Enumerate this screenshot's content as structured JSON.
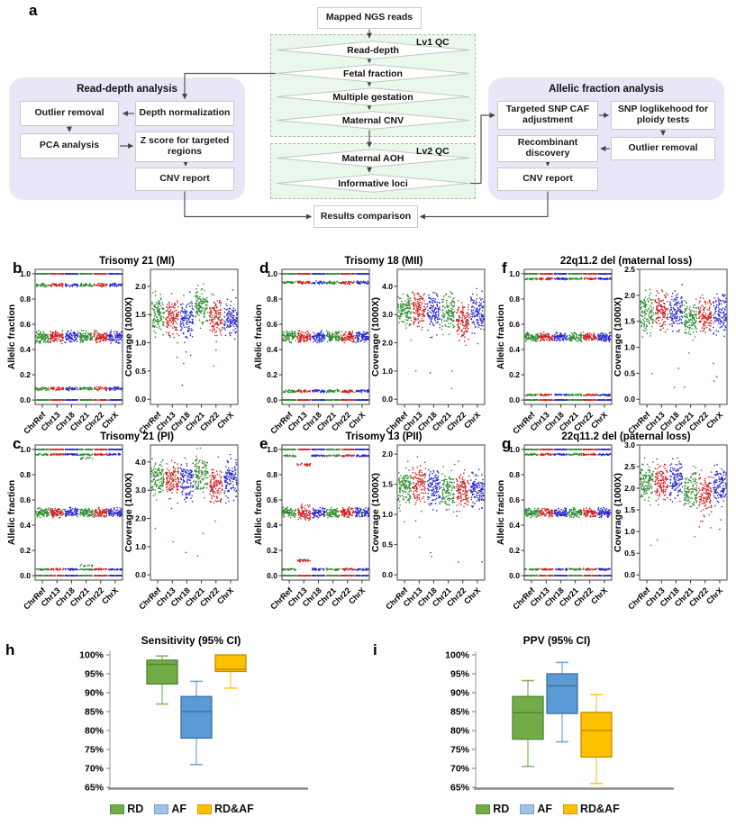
{
  "flowchart": {
    "label": "a",
    "top_box": "Mapped NGS reads",
    "bottom_box": "Results comparison",
    "qc1": {
      "title": "Lv1 QC",
      "steps": [
        "Read-depth",
        "Fetal fraction",
        "Multiple gestation",
        "Maternal CNV"
      ]
    },
    "qc2": {
      "title": "Lv2 QC",
      "steps": [
        "Maternal AOH",
        "Informative loci"
      ]
    },
    "left_panel": {
      "title": "Read-depth analysis",
      "outlier": "Outlier removal",
      "depth": "Depth normalization",
      "pca": "PCA analysis",
      "zscore": "Z score for targeted regions",
      "cnv": "CNV report"
    },
    "right_panel": {
      "title": "Allelic fraction analysis",
      "caf": "Targeted SNP CAF adjustment",
      "loglike": "SNP loglikehood for ploidy tests",
      "recomb": "Recombinant discovery",
      "outlier": "Outlier removal",
      "cnv": "CNV report"
    }
  },
  "colors": {
    "scatter": [
      "#2e8b2e",
      "#cc2222",
      "#2929cc"
    ],
    "panel_bg": "#e7e7f8",
    "qc_bg": "#eaf7ec",
    "box": {
      "green": {
        "fill": "#70AD47",
        "stroke": "#548235"
      },
      "blue": {
        "fill": "#5B9BD5",
        "stroke": "#41719C"
      },
      "yellow": {
        "fill": "#FFC000",
        "stroke": "#BF9000"
      }
    },
    "legend_swatches": [
      "#70AD47",
      "#9DC3E6",
      "#FFC000"
    ]
  },
  "chart_data": {
    "x_categories": [
      "ChrRef",
      "Chr13",
      "Chr18",
      "Chr21",
      "Chr22",
      "ChrX"
    ],
    "af_ylabel": "Allelic fraction",
    "cov_ylabel": "Coverage (1000X)",
    "af_yticks": [
      0.0,
      0.2,
      0.4,
      0.6,
      0.8,
      1.0
    ],
    "scatter_panels": [
      {
        "letter": "b",
        "title": "Trisomy 21 (MI)",
        "seed": 11,
        "af": {
          "bands": [
            [
              1.0,
              0.003,
              55
            ],
            [
              0.91,
              0.016,
              34
            ],
            [
              0.5,
              0.055,
              88
            ],
            [
              0.09,
              0.016,
              34
            ],
            [
              0.0,
              0.003,
              55
            ]
          ]
        },
        "cov": {
          "ymax_axis": 2.3,
          "yticks": [
            0,
            0.5,
            1.0,
            1.5,
            2.0
          ],
          "center": 1.45,
          "spread": 0.16,
          "offsets": [
            0.05,
            0,
            0,
            0.2,
            0,
            -0.05
          ],
          "outliers": 7
        }
      },
      {
        "letter": "c",
        "title": "Trisomy 21 (PI)",
        "seed": 22,
        "af": {
          "bands": [
            [
              1.0,
              0.003,
              55
            ],
            [
              0.96,
              0.008,
              30
            ],
            [
              0.5,
              0.042,
              80
            ],
            [
              0.05,
              0.008,
              30
            ],
            [
              0.0,
              0.003,
              55
            ]
          ],
          "extra": {
            "3": [
              [
                0.93,
                0.01,
                14
              ],
              [
                0.08,
                0.01,
                14
              ]
            ]
          }
        },
        "cov": {
          "ymax_axis": 4.6,
          "yticks": [
            0,
            1.0,
            2.0,
            3.0,
            4.0
          ],
          "center": 3.35,
          "spread": 0.3,
          "offsets": [
            0.05,
            0.05,
            0,
            0.2,
            -0.15,
            0
          ],
          "outliers": 6
        }
      },
      {
        "letter": "d",
        "title": "Trisomy 18 (MII)",
        "seed": 33,
        "af": {
          "bands": [
            [
              1.0,
              0.003,
              55
            ],
            [
              0.93,
              0.014,
              34
            ],
            [
              0.5,
              0.052,
              88
            ],
            [
              0.07,
              0.014,
              34
            ],
            [
              0.0,
              0.003,
              55
            ]
          ]
        },
        "cov": {
          "ymax_axis": 4.6,
          "yticks": [
            0,
            1.0,
            2.0,
            3.0,
            4.0
          ],
          "center": 3.1,
          "spread": 0.3,
          "offsets": [
            0.05,
            0.05,
            0,
            0,
            -0.35,
            0
          ],
          "outliers": 5
        }
      },
      {
        "letter": "e",
        "title": "Trisomy 13 (PII)",
        "seed": 44,
        "af": {
          "bands": [
            [
              1.0,
              0.003,
              55
            ],
            [
              0.95,
              0.01,
              30
            ],
            [
              0.5,
              0.045,
              80
            ],
            [
              0.05,
              0.01,
              30
            ],
            [
              0.0,
              0.003,
              55
            ]
          ],
          "overrides": {
            "1": [
              [
                1.0,
                0.003,
                55
              ],
              [
                0.88,
                0.014,
                28
              ],
              [
                0.5,
                0.07,
                85
              ],
              [
                0.12,
                0.014,
                28
              ],
              [
                0.0,
                0.003,
                55
              ]
            ]
          }
        },
        "cov": {
          "ymax_axis": 2.15,
          "yticks": [
            0,
            0.5,
            1.0,
            1.5,
            2.0
          ],
          "center": 1.45,
          "spread": 0.14,
          "offsets": [
            0,
            0.05,
            0,
            -0.05,
            -0.05,
            -0.05
          ],
          "outliers": 7
        }
      },
      {
        "letter": "f",
        "title": "22q11.2 del (maternal loss)",
        "seed": 55,
        "af": {
          "bands": [
            [
              1.0,
              0.003,
              55
            ],
            [
              0.96,
              0.009,
              32
            ],
            [
              0.5,
              0.04,
              80
            ],
            [
              0.04,
              0.009,
              32
            ],
            [
              0.0,
              0.003,
              55
            ]
          ]
        },
        "cov": {
          "ymax_axis": 2.5,
          "yticks": [
            0,
            0.5,
            1.0,
            1.5,
            2.0,
            2.5
          ],
          "center": 1.65,
          "spread": 0.16,
          "offsets": [
            0,
            0.05,
            0.05,
            -0.1,
            -0.05,
            0
          ],
          "outliers": 8
        }
      },
      {
        "letter": "g",
        "title": "22q11.2 del (paternal loss)",
        "seed": 66,
        "af": {
          "bands": [
            [
              1.0,
              0.003,
              55
            ],
            [
              0.96,
              0.009,
              32
            ],
            [
              0.5,
              0.042,
              80
            ],
            [
              0.05,
              0.009,
              32
            ],
            [
              0.0,
              0.003,
              55
            ]
          ]
        },
        "cov": {
          "ymax_axis": 3.0,
          "yticks": [
            0,
            0.5,
            1.0,
            1.5,
            2.0,
            2.5,
            3.0
          ],
          "center": 2.1,
          "spread": 0.2,
          "offsets": [
            0.05,
            0.05,
            0.1,
            -0.15,
            -0.2,
            0
          ],
          "outliers": 8
        }
      }
    ],
    "box_panels": [
      {
        "letter": "h",
        "type": "box",
        "title": "Sensitivity (95% CI)",
        "ylim": [
          65,
          100
        ],
        "yticks": [
          100,
          95,
          90,
          85,
          80,
          75,
          70,
          65
        ],
        "boxes": [
          {
            "name": "RD",
            "color": "green",
            "low": 87.0,
            "q1": 92.3,
            "median": 97.5,
            "q3": 98.6,
            "high": 99.7
          },
          {
            "name": "AF",
            "color": "blue",
            "low": 71.0,
            "q1": 78.0,
            "median": 85.0,
            "q3": 89.0,
            "high": 93.0
          },
          {
            "name": "RD&AF",
            "color": "yellow",
            "low": 91.2,
            "q1": 95.6,
            "median": 96.2,
            "q3": 100.0,
            "high": 100.0
          }
        ],
        "legend": [
          "RD",
          "AF",
          "RD&AF"
        ]
      },
      {
        "letter": "i",
        "type": "box",
        "title": "PPV (95% CI)",
        "ylim": [
          65,
          100
        ],
        "yticks": [
          100,
          95,
          90,
          85,
          80,
          75,
          70,
          65
        ],
        "boxes": [
          {
            "name": "RD",
            "color": "green",
            "low": 70.5,
            "q1": 77.7,
            "median": 84.7,
            "q3": 89.0,
            "high": 93.2
          },
          {
            "name": "AF",
            "color": "blue",
            "low": 77.0,
            "q1": 84.5,
            "median": 91.8,
            "q3": 95.0,
            "high": 98.0
          },
          {
            "name": "RD&AF",
            "color": "yellow",
            "low": 66.0,
            "q1": 73.0,
            "median": 80.0,
            "q3": 84.8,
            "high": 89.5
          }
        ],
        "legend": [
          "RD",
          "AF",
          "RD&AF"
        ]
      }
    ]
  }
}
